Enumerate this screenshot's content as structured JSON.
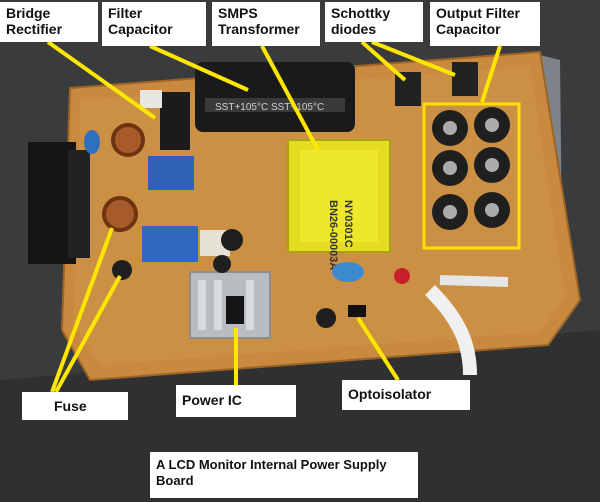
{
  "labels": {
    "bridge_rectifier": "Bridge Rectifier",
    "filter_capacitor": "Filter Capacitor",
    "smps_transformer": "SMPS Transformer",
    "schottky_diodes": "Schottky diodes",
    "output_filter_capacitor": "Output Filter Capacitor",
    "fuse": "Fuse",
    "power_ic": "Power IC",
    "optoisolator": "Optoisolator"
  },
  "caption": "A LCD Monitor Internal Power Supply Board",
  "transformer_marking": [
    "BN26-00003A",
    "NY0301C"
  ],
  "colors": {
    "board": "#c9893f",
    "highlight": "#ffe000",
    "arrow": "#ffe600",
    "transformer": "#e6e01e",
    "label_bg": "#ffffff"
  }
}
